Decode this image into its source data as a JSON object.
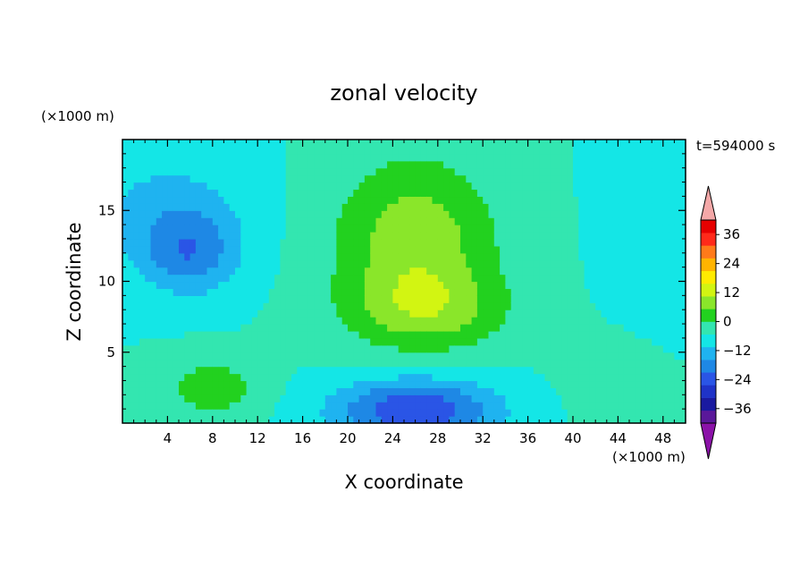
{
  "chart_data": {
    "type": "heatmap",
    "title": "zonal velocity",
    "xlabel": "X coordinate",
    "ylabel": "Z coordinate",
    "x_unit": "(×1000 m)",
    "y_unit": "(×1000 m)",
    "time_label": "t=594000 s",
    "xlim": [
      0,
      50
    ],
    "ylim": [
      0,
      20
    ],
    "x_ticks": [
      4,
      8,
      12,
      16,
      20,
      24,
      28,
      32,
      36,
      40,
      44,
      48
    ],
    "y_ticks": [
      5,
      10,
      15
    ],
    "grid": false,
    "legend_position": "right",
    "colorbar": {
      "levels": [
        -42,
        -36,
        -30,
        -24,
        -18,
        -12,
        -6,
        0,
        6,
        12,
        18,
        24,
        30,
        36,
        42
      ],
      "labels": [
        -36,
        -24,
        -12,
        0,
        12,
        24,
        36
      ],
      "colors": [
        "#5a189a",
        "#1a1aa0",
        "#1f33c8",
        "#2a55e6",
        "#1e88e5",
        "#1fb3f0",
        "#14e6e6",
        "#33e6b0",
        "#22d11f",
        "#8ae62a",
        "#d2f512",
        "#ffeb00",
        "#ffb400",
        "#ff7a1a",
        "#ff2a1a",
        "#e60000"
      ],
      "over_color": "#f4a8a8",
      "under_color": "#8b12a8"
    },
    "field_features": [
      {
        "x": 26,
        "z": 13,
        "value": 16,
        "sigma_x": 5,
        "sigma_z": 4
      },
      {
        "x": 27,
        "z": 8,
        "value": 12,
        "sigma_x": 5,
        "sigma_z": 2
      },
      {
        "x": 6,
        "z": 12,
        "value": -14,
        "sigma_x": 3,
        "sigma_z": 2
      },
      {
        "x": 4,
        "z": 15,
        "value": -8,
        "sigma_x": 5,
        "sigma_z": 3
      },
      {
        "x": 26,
        "z": 1,
        "value": -24,
        "sigma_x": 5,
        "sigma_z": 1.5
      },
      {
        "x": 8,
        "z": 2.5,
        "value": 10,
        "sigma_x": 3,
        "sigma_z": 1.5
      },
      {
        "x": 48,
        "z": 15,
        "value": -6,
        "sigma_x": 3,
        "sigma_z": 5
      },
      {
        "x": 44,
        "z": 3,
        "value": 4,
        "sigma_x": 3,
        "sigma_z": 2
      }
    ]
  }
}
